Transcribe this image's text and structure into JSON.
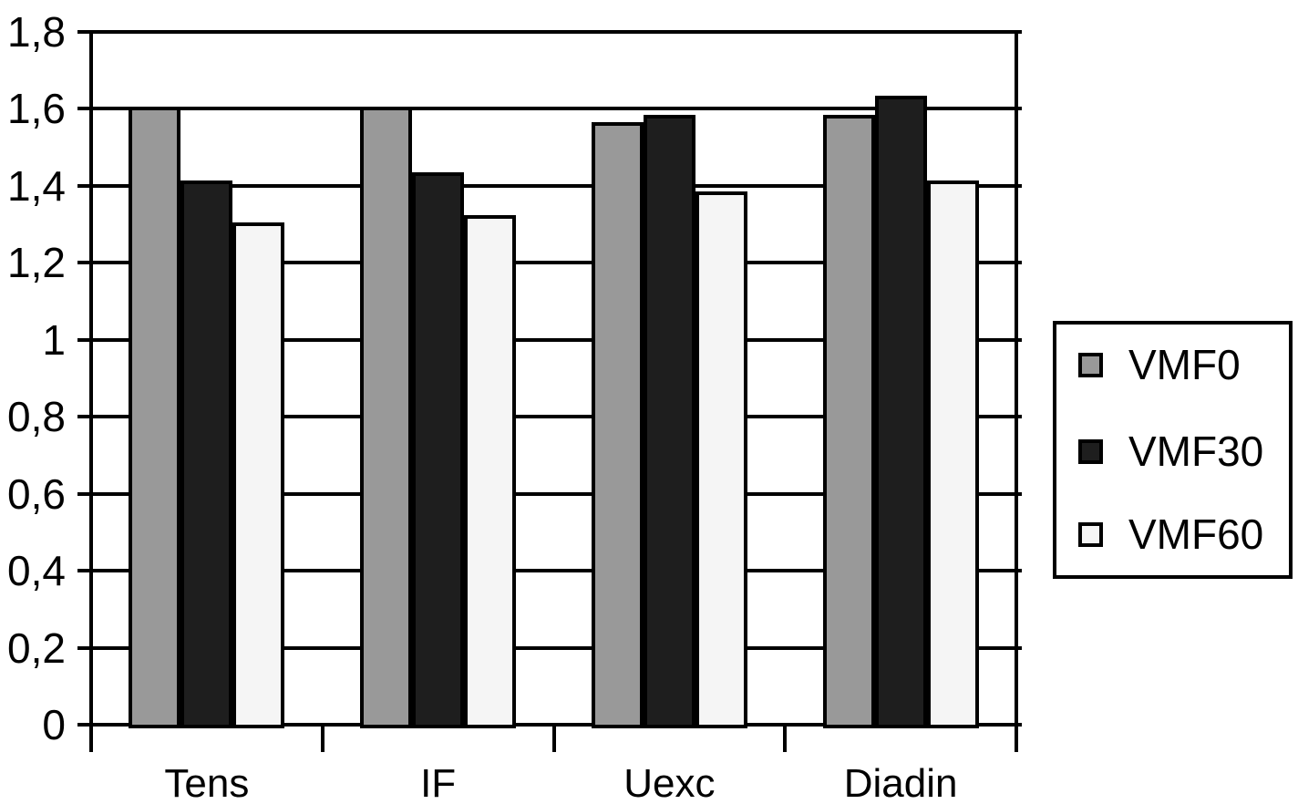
{
  "chart_data": {
    "type": "bar",
    "categories": [
      "Tens",
      "IF",
      "Uexc",
      "Diadin"
    ],
    "series": [
      {
        "name": "VMF0",
        "color": "#999999",
        "values": [
          1.6,
          1.6,
          1.56,
          1.58
        ]
      },
      {
        "name": "VMF30",
        "color": "#1e1e1e",
        "values": [
          1.41,
          1.43,
          1.58,
          1.63
        ]
      },
      {
        "name": "VMF60",
        "color": "#f5f5f5",
        "values": [
          1.3,
          1.32,
          1.38,
          1.41
        ]
      }
    ],
    "ylim": [
      0,
      1.8
    ],
    "ytick_step": 0.2,
    "ytick_labels": [
      "0",
      "0,2",
      "0,4",
      "0,6",
      "0,8",
      "1",
      "1,2",
      "1,4",
      "1,6",
      "1,8"
    ],
    "decimal_separator": ",",
    "grid": "horizontal",
    "bar_outline_color": "#000000",
    "legend_position": "right",
    "xlabel": "",
    "ylabel": ""
  }
}
